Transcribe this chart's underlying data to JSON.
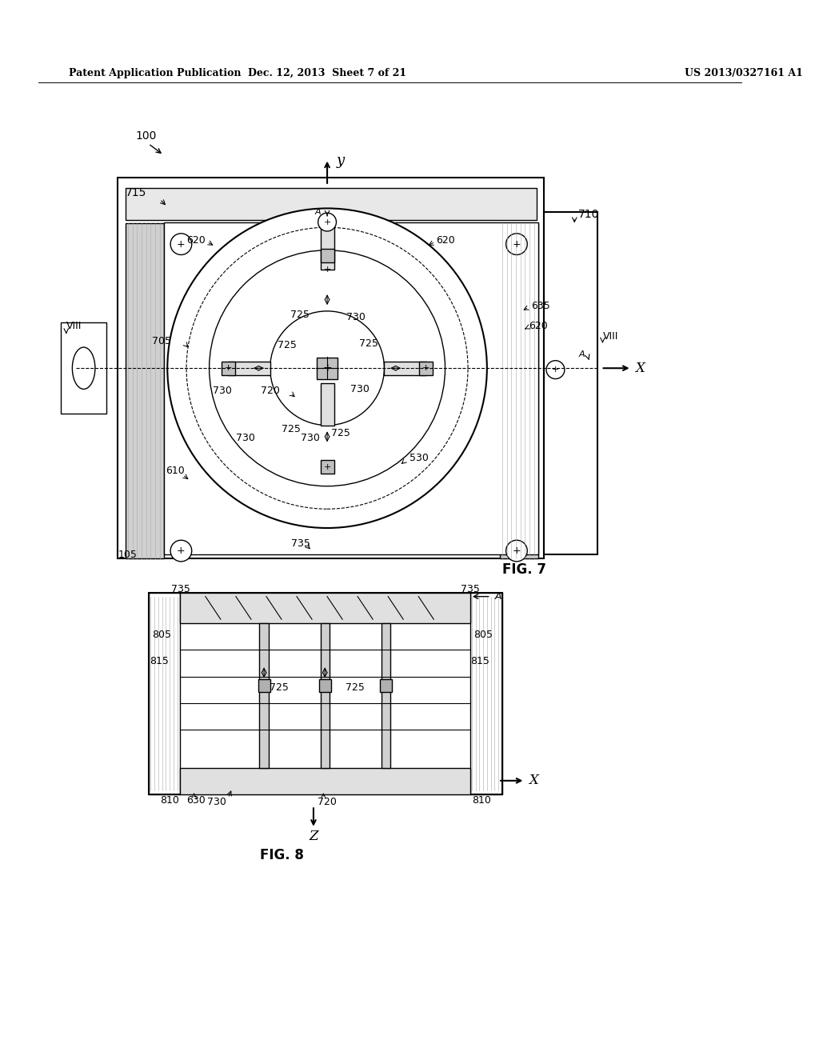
{
  "bg_color": "#ffffff",
  "line_color": "#000000",
  "header_left": "Patent Application Publication",
  "header_center": "Dec. 12, 2013  Sheet 7 of 21",
  "header_right": "US 2013/0327161 A1",
  "fig7_label": "FIG. 7",
  "fig8_label": "FIG. 8",
  "label_100": "100",
  "label_715": "715",
  "label_710": "710",
  "label_705": "705",
  "label_610": "610",
  "label_620_list": [
    "620",
    "620",
    "620"
  ],
  "label_635": "635",
  "label_530": "530",
  "label_720": "720",
  "label_725_list": [
    "725",
    "725",
    "725",
    "725",
    "725"
  ],
  "label_730_list": [
    "730",
    "730",
    "730",
    "730",
    "730"
  ],
  "label_735_list": [
    "735",
    "735"
  ],
  "label_VIII": "VIII",
  "label_105": "105",
  "label_A": "A",
  "label_X": "X",
  "label_Y": "y",
  "label_Z": "Z",
  "label_805_list": [
    "805",
    "805"
  ],
  "label_815_list": [
    "815",
    "815"
  ],
  "label_810_list": [
    "810",
    "810"
  ],
  "label_630": "630"
}
